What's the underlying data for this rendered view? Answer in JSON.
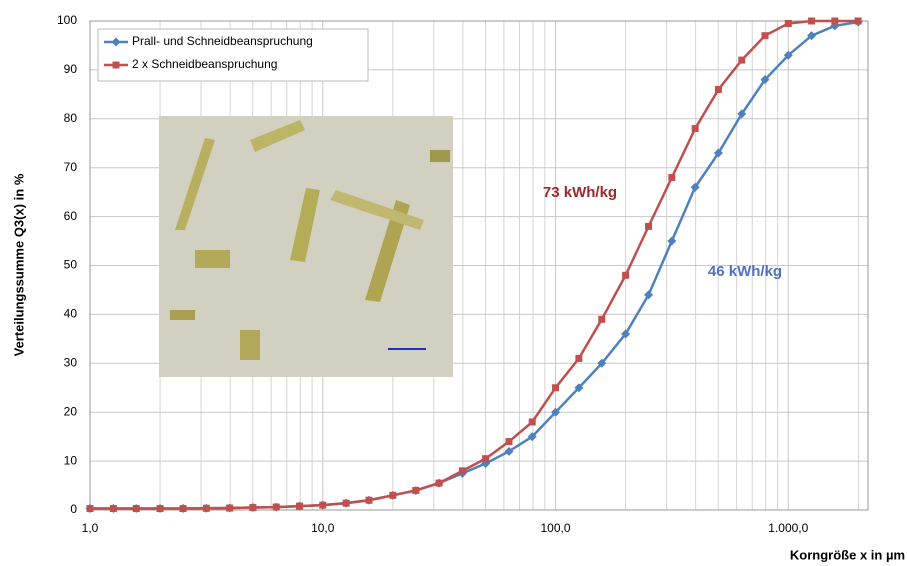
{
  "chart_data": {
    "type": "line",
    "log_x": true,
    "grid": true,
    "xlabel": "Korngröße x in µm",
    "ylabel": "Verteilungssumme Q3(x) in %",
    "legend": "top-left",
    "x": [
      1,
      1.26,
      1.58,
      2,
      2.51,
      3.16,
      3.98,
      5.01,
      6.31,
      7.94,
      10,
      12.6,
      15.8,
      20,
      25.1,
      31.6,
      39.8,
      50.1,
      63.1,
      79.4,
      100,
      126,
      158,
      200,
      251,
      316,
      398,
      501,
      631,
      794,
      1000,
      1259,
      1585,
      1995
    ],
    "series": [
      {
        "name": "Prall- und Schneidbeanspruchung",
        "color": "#4f81bd",
        "marker": "diamond",
        "values": [
          0.3,
          0.3,
          0.3,
          0.3,
          0.3,
          0.35,
          0.4,
          0.5,
          0.6,
          0.8,
          1,
          1.4,
          2,
          3,
          4,
          5.5,
          7.5,
          9.5,
          12,
          15,
          20,
          25,
          30,
          36,
          44,
          55,
          66,
          73,
          81,
          88,
          93,
          97,
          99,
          99.8
        ]
      },
      {
        "name": "2 x Schneidbeanspruchung",
        "color": "#c0504d",
        "marker": "square",
        "values": [
          0.3,
          0.3,
          0.3,
          0.3,
          0.3,
          0.35,
          0.4,
          0.5,
          0.6,
          0.8,
          1,
          1.4,
          2,
          3,
          4,
          5.5,
          8,
          10.5,
          14,
          18,
          25,
          31,
          39,
          48,
          58,
          68,
          78,
          86,
          92,
          97,
          99.5,
          100,
          100,
          100
        ]
      }
    ],
    "annotations": [
      {
        "text": "73 kWh/kg",
        "color": "#a0282d"
      },
      {
        "text": "46 kWh/kg",
        "color": "#4f6fc8"
      }
    ],
    "xlim": [
      1,
      2200
    ],
    "xticks": [
      {
        "value": 1,
        "label": "1,0"
      },
      {
        "value": 10,
        "label": "10,0"
      },
      {
        "value": 100,
        "label": "100,0"
      },
      {
        "value": 1000,
        "label": "1.000,0"
      }
    ],
    "xminorticks": [
      2,
      3,
      4,
      5,
      6,
      7,
      8,
      9,
      20,
      30,
      40,
      50,
      60,
      70,
      80,
      90,
      200,
      300,
      400,
      500,
      600,
      700,
      800,
      900,
      2000
    ],
    "ylim": [
      0,
      100
    ],
    "yticks": [
      0,
      10,
      20,
      30,
      40,
      50,
      60,
      70,
      80,
      90,
      100
    ]
  }
}
